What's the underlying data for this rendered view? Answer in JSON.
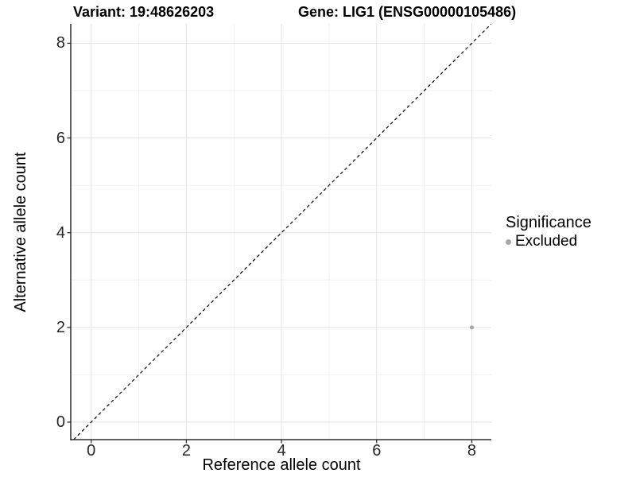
{
  "chart_data": {
    "type": "scatter",
    "title_left": "Variant: 19:48626203",
    "title_right": "Gene: LIG1 (ENSG00000105486)",
    "xlabel": "Reference allele count",
    "ylabel": "Alternative allele count",
    "xlim": [
      -0.43,
      8.41
    ],
    "ylim": [
      -0.37,
      8.41
    ],
    "xticks": [
      0,
      2,
      4,
      6,
      8
    ],
    "yticks": [
      0,
      2,
      4,
      6,
      8
    ],
    "minor_xticks": [
      1,
      3,
      5,
      7
    ],
    "minor_yticks": [
      1,
      3,
      5,
      7
    ],
    "grid": "major+minor",
    "reference_line": {
      "type": "identity y=x",
      "style": "dashed",
      "color": "#000000"
    },
    "series": [
      {
        "name": "Excluded",
        "color": "#a8a8a8",
        "points": [
          {
            "x": 8,
            "y": 2
          }
        ]
      }
    ],
    "legend": {
      "title": "Significance",
      "position": "right",
      "items": [
        {
          "label": "Excluded",
          "color": "#a8a8a8"
        }
      ]
    }
  },
  "colors": {
    "grid_major": "#e3e3e3",
    "grid_minor": "#f0f0f0",
    "axis": "#2f2f2f",
    "background": "#ffffff"
  }
}
